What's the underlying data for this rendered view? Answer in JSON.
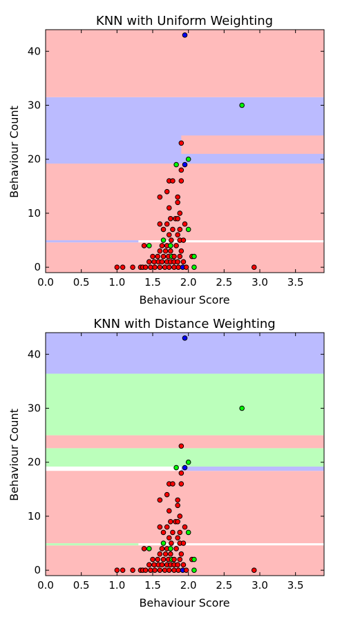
{
  "chart_data": [
    {
      "type": "scatter",
      "title": "KNN with Uniform Weighting",
      "xlabel": "Behaviour Score",
      "ylabel": "Behaviour Count",
      "xlim": [
        0.0,
        3.9
      ],
      "ylim": [
        -1,
        44
      ],
      "xticks": [
        "0.0",
        "0.5",
        "1.0",
        "1.5",
        "2.0",
        "2.5",
        "3.0",
        "3.5"
      ],
      "yticks": [
        "0",
        "10",
        "20",
        "30",
        "40"
      ],
      "grid": false,
      "class_colors": {
        "red": {
          "region": "#ffbbbb",
          "point": "#ff0000"
        },
        "green": {
          "region": "#bbffbb",
          "point": "#00ff00"
        },
        "blue": {
          "region": "#bbbbff",
          "point": "#0000ff"
        }
      },
      "regions": [
        {
          "class": "red",
          "x": [
            0.0,
            3.9
          ],
          "y": [
            -1,
            4.6
          ]
        },
        {
          "class": "blue",
          "x": [
            0.0,
            1.3
          ],
          "y": [
            4.6,
            5.0
          ]
        },
        {
          "class": "red",
          "x": [
            0.0,
            3.9
          ],
          "y": [
            5.0,
            19.2
          ]
        },
        {
          "class": "blue",
          "x": [
            0.0,
            3.9
          ],
          "y": [
            19.2,
            31.5
          ]
        },
        {
          "class": "red",
          "x": [
            1.9,
            3.9
          ],
          "y": [
            21.0,
            24.4
          ]
        },
        {
          "class": "red",
          "x": [
            0.0,
            3.9
          ],
          "y": [
            31.5,
            44
          ]
        }
      ],
      "points": [
        {
          "x": 1.95,
          "y": 43,
          "class": "blue"
        },
        {
          "x": 2.75,
          "y": 30,
          "class": "green"
        },
        {
          "x": 1.9,
          "y": 23,
          "class": "red"
        },
        {
          "x": 2.0,
          "y": 20,
          "class": "green"
        },
        {
          "x": 1.83,
          "y": 19,
          "class": "green"
        },
        {
          "x": 1.95,
          "y": 19,
          "class": "blue"
        },
        {
          "x": 1.9,
          "y": 18,
          "class": "red"
        },
        {
          "x": 1.73,
          "y": 16,
          "class": "red"
        },
        {
          "x": 1.78,
          "y": 16,
          "class": "red"
        },
        {
          "x": 1.9,
          "y": 16,
          "class": "red"
        },
        {
          "x": 1.7,
          "y": 14,
          "class": "red"
        },
        {
          "x": 1.6,
          "y": 13,
          "class": "red"
        },
        {
          "x": 1.85,
          "y": 13,
          "class": "red"
        },
        {
          "x": 1.85,
          "y": 12,
          "class": "red"
        },
        {
          "x": 1.73,
          "y": 11,
          "class": "red"
        },
        {
          "x": 1.88,
          "y": 10,
          "class": "red"
        },
        {
          "x": 1.75,
          "y": 9,
          "class": "red"
        },
        {
          "x": 1.82,
          "y": 9,
          "class": "red"
        },
        {
          "x": 1.85,
          "y": 9,
          "class": "red"
        },
        {
          "x": 1.6,
          "y": 8,
          "class": "red"
        },
        {
          "x": 1.7,
          "y": 8,
          "class": "red"
        },
        {
          "x": 1.95,
          "y": 8,
          "class": "red"
        },
        {
          "x": 1.65,
          "y": 7,
          "class": "red"
        },
        {
          "x": 1.78,
          "y": 7,
          "class": "red"
        },
        {
          "x": 1.88,
          "y": 7,
          "class": "red"
        },
        {
          "x": 2.0,
          "y": 7,
          "class": "green"
        },
        {
          "x": 1.73,
          "y": 6,
          "class": "red"
        },
        {
          "x": 1.85,
          "y": 6,
          "class": "red"
        },
        {
          "x": 1.65,
          "y": 5,
          "class": "green"
        },
        {
          "x": 1.76,
          "y": 5,
          "class": "red"
        },
        {
          "x": 1.88,
          "y": 5,
          "class": "red"
        },
        {
          "x": 1.93,
          "y": 5,
          "class": "red"
        },
        {
          "x": 1.38,
          "y": 4,
          "class": "red"
        },
        {
          "x": 1.45,
          "y": 4,
          "class": "green"
        },
        {
          "x": 1.63,
          "y": 4,
          "class": "red"
        },
        {
          "x": 1.7,
          "y": 4,
          "class": "red"
        },
        {
          "x": 1.75,
          "y": 4,
          "class": "green"
        },
        {
          "x": 1.83,
          "y": 4,
          "class": "red"
        },
        {
          "x": 1.6,
          "y": 3,
          "class": "red"
        },
        {
          "x": 1.68,
          "y": 3,
          "class": "red"
        },
        {
          "x": 1.75,
          "y": 3,
          "class": "red"
        },
        {
          "x": 1.9,
          "y": 3,
          "class": "red"
        },
        {
          "x": 1.5,
          "y": 2,
          "class": "red"
        },
        {
          "x": 1.57,
          "y": 2,
          "class": "red"
        },
        {
          "x": 1.65,
          "y": 2,
          "class": "red"
        },
        {
          "x": 1.72,
          "y": 2,
          "class": "red"
        },
        {
          "x": 1.77,
          "y": 2,
          "class": "green"
        },
        {
          "x": 1.8,
          "y": 2,
          "class": "red"
        },
        {
          "x": 1.88,
          "y": 2,
          "class": "red"
        },
        {
          "x": 2.05,
          "y": 2,
          "class": "red"
        },
        {
          "x": 2.08,
          "y": 2,
          "class": "green"
        },
        {
          "x": 1.45,
          "y": 1,
          "class": "red"
        },
        {
          "x": 1.52,
          "y": 1,
          "class": "red"
        },
        {
          "x": 1.58,
          "y": 1,
          "class": "red"
        },
        {
          "x": 1.63,
          "y": 1,
          "class": "red"
        },
        {
          "x": 1.7,
          "y": 1,
          "class": "red"
        },
        {
          "x": 1.75,
          "y": 1,
          "class": "red"
        },
        {
          "x": 1.8,
          "y": 1,
          "class": "red"
        },
        {
          "x": 1.85,
          "y": 1,
          "class": "red"
        },
        {
          "x": 1.93,
          "y": 1,
          "class": "red"
        },
        {
          "x": 1.0,
          "y": 0,
          "class": "red"
        },
        {
          "x": 1.08,
          "y": 0,
          "class": "red"
        },
        {
          "x": 1.22,
          "y": 0,
          "class": "red"
        },
        {
          "x": 1.33,
          "y": 0,
          "class": "red"
        },
        {
          "x": 1.36,
          "y": 0,
          "class": "red"
        },
        {
          "x": 1.4,
          "y": 0,
          "class": "red"
        },
        {
          "x": 1.47,
          "y": 0,
          "class": "red"
        },
        {
          "x": 1.53,
          "y": 0,
          "class": "red"
        },
        {
          "x": 1.6,
          "y": 0,
          "class": "red"
        },
        {
          "x": 1.67,
          "y": 0,
          "class": "red"
        },
        {
          "x": 1.73,
          "y": 0,
          "class": "red"
        },
        {
          "x": 1.8,
          "y": 0,
          "class": "red"
        },
        {
          "x": 1.86,
          "y": 0,
          "class": "red"
        },
        {
          "x": 1.92,
          "y": 0,
          "class": "blue"
        },
        {
          "x": 1.97,
          "y": 0,
          "class": "red"
        },
        {
          "x": 2.08,
          "y": 0,
          "class": "green"
        },
        {
          "x": 2.92,
          "y": 0,
          "class": "red"
        }
      ]
    },
    {
      "type": "scatter",
      "title": "KNN with Distance Weighting",
      "xlabel": "Behaviour Score",
      "ylabel": "Behaviour Count",
      "xlim": [
        0.0,
        3.9
      ],
      "ylim": [
        -1,
        44
      ],
      "xticks": [
        "0.0",
        "0.5",
        "1.0",
        "1.5",
        "2.0",
        "2.5",
        "3.0",
        "3.5"
      ],
      "yticks": [
        "0",
        "10",
        "20",
        "30",
        "40"
      ],
      "grid": false,
      "class_colors": {
        "red": {
          "region": "#ffbbbb",
          "point": "#ff0000"
        },
        "green": {
          "region": "#bbffbb",
          "point": "#00ff00"
        },
        "blue": {
          "region": "#bbbbff",
          "point": "#0000ff"
        }
      },
      "regions": [
        {
          "class": "red",
          "x": [
            0.0,
            3.9
          ],
          "y": [
            -1,
            4.6
          ]
        },
        {
          "class": "green",
          "x": [
            0.0,
            1.3
          ],
          "y": [
            4.6,
            5.0
          ]
        },
        {
          "class": "red",
          "x": [
            0.0,
            3.9
          ],
          "y": [
            5.0,
            18.4
          ]
        },
        {
          "class": "blue",
          "x": [
            1.9,
            3.9
          ],
          "y": [
            18.4,
            19.2
          ]
        },
        {
          "class": "green",
          "x": [
            0.0,
            3.9
          ],
          "y": [
            19.2,
            22.6
          ]
        },
        {
          "class": "red",
          "x": [
            0.0,
            3.9
          ],
          "y": [
            22.6,
            25.0
          ]
        },
        {
          "class": "green",
          "x": [
            0.0,
            3.9
          ],
          "y": [
            25.0,
            36.4
          ]
        },
        {
          "class": "blue",
          "x": [
            0.0,
            3.9
          ],
          "y": [
            36.4,
            44
          ]
        }
      ],
      "points": [
        {
          "x": 1.95,
          "y": 43,
          "class": "blue"
        },
        {
          "x": 2.75,
          "y": 30,
          "class": "green"
        },
        {
          "x": 1.9,
          "y": 23,
          "class": "red"
        },
        {
          "x": 2.0,
          "y": 20,
          "class": "green"
        },
        {
          "x": 1.83,
          "y": 19,
          "class": "green"
        },
        {
          "x": 1.95,
          "y": 19,
          "class": "blue"
        },
        {
          "x": 1.9,
          "y": 18,
          "class": "red"
        },
        {
          "x": 1.73,
          "y": 16,
          "class": "red"
        },
        {
          "x": 1.78,
          "y": 16,
          "class": "red"
        },
        {
          "x": 1.9,
          "y": 16,
          "class": "red"
        },
        {
          "x": 1.7,
          "y": 14,
          "class": "red"
        },
        {
          "x": 1.6,
          "y": 13,
          "class": "red"
        },
        {
          "x": 1.85,
          "y": 13,
          "class": "red"
        },
        {
          "x": 1.85,
          "y": 12,
          "class": "red"
        },
        {
          "x": 1.73,
          "y": 11,
          "class": "red"
        },
        {
          "x": 1.88,
          "y": 10,
          "class": "red"
        },
        {
          "x": 1.75,
          "y": 9,
          "class": "red"
        },
        {
          "x": 1.82,
          "y": 9,
          "class": "red"
        },
        {
          "x": 1.85,
          "y": 9,
          "class": "red"
        },
        {
          "x": 1.6,
          "y": 8,
          "class": "red"
        },
        {
          "x": 1.7,
          "y": 8,
          "class": "red"
        },
        {
          "x": 1.95,
          "y": 8,
          "class": "red"
        },
        {
          "x": 1.65,
          "y": 7,
          "class": "red"
        },
        {
          "x": 1.78,
          "y": 7,
          "class": "red"
        },
        {
          "x": 1.88,
          "y": 7,
          "class": "red"
        },
        {
          "x": 2.0,
          "y": 7,
          "class": "green"
        },
        {
          "x": 1.73,
          "y": 6,
          "class": "red"
        },
        {
          "x": 1.85,
          "y": 6,
          "class": "red"
        },
        {
          "x": 1.65,
          "y": 5,
          "class": "green"
        },
        {
          "x": 1.76,
          "y": 5,
          "class": "red"
        },
        {
          "x": 1.88,
          "y": 5,
          "class": "red"
        },
        {
          "x": 1.93,
          "y": 5,
          "class": "red"
        },
        {
          "x": 1.38,
          "y": 4,
          "class": "red"
        },
        {
          "x": 1.45,
          "y": 4,
          "class": "green"
        },
        {
          "x": 1.63,
          "y": 4,
          "class": "red"
        },
        {
          "x": 1.7,
          "y": 4,
          "class": "red"
        },
        {
          "x": 1.75,
          "y": 4,
          "class": "green"
        },
        {
          "x": 1.83,
          "y": 4,
          "class": "red"
        },
        {
          "x": 1.6,
          "y": 3,
          "class": "red"
        },
        {
          "x": 1.68,
          "y": 3,
          "class": "red"
        },
        {
          "x": 1.75,
          "y": 3,
          "class": "red"
        },
        {
          "x": 1.9,
          "y": 3,
          "class": "red"
        },
        {
          "x": 1.5,
          "y": 2,
          "class": "red"
        },
        {
          "x": 1.57,
          "y": 2,
          "class": "red"
        },
        {
          "x": 1.65,
          "y": 2,
          "class": "red"
        },
        {
          "x": 1.72,
          "y": 2,
          "class": "red"
        },
        {
          "x": 1.77,
          "y": 2,
          "class": "green"
        },
        {
          "x": 1.8,
          "y": 2,
          "class": "red"
        },
        {
          "x": 1.88,
          "y": 2,
          "class": "red"
        },
        {
          "x": 2.05,
          "y": 2,
          "class": "red"
        },
        {
          "x": 2.08,
          "y": 2,
          "class": "green"
        },
        {
          "x": 1.45,
          "y": 1,
          "class": "red"
        },
        {
          "x": 1.52,
          "y": 1,
          "class": "red"
        },
        {
          "x": 1.58,
          "y": 1,
          "class": "red"
        },
        {
          "x": 1.63,
          "y": 1,
          "class": "red"
        },
        {
          "x": 1.7,
          "y": 1,
          "class": "red"
        },
        {
          "x": 1.75,
          "y": 1,
          "class": "red"
        },
        {
          "x": 1.8,
          "y": 1,
          "class": "red"
        },
        {
          "x": 1.85,
          "y": 1,
          "class": "red"
        },
        {
          "x": 1.93,
          "y": 1,
          "class": "red"
        },
        {
          "x": 1.0,
          "y": 0,
          "class": "red"
        },
        {
          "x": 1.08,
          "y": 0,
          "class": "red"
        },
        {
          "x": 1.22,
          "y": 0,
          "class": "red"
        },
        {
          "x": 1.33,
          "y": 0,
          "class": "red"
        },
        {
          "x": 1.36,
          "y": 0,
          "class": "red"
        },
        {
          "x": 1.4,
          "y": 0,
          "class": "red"
        },
        {
          "x": 1.47,
          "y": 0,
          "class": "red"
        },
        {
          "x": 1.53,
          "y": 0,
          "class": "red"
        },
        {
          "x": 1.6,
          "y": 0,
          "class": "red"
        },
        {
          "x": 1.67,
          "y": 0,
          "class": "red"
        },
        {
          "x": 1.73,
          "y": 0,
          "class": "red"
        },
        {
          "x": 1.8,
          "y": 0,
          "class": "red"
        },
        {
          "x": 1.86,
          "y": 0,
          "class": "red"
        },
        {
          "x": 1.92,
          "y": 0,
          "class": "blue"
        },
        {
          "x": 1.97,
          "y": 0,
          "class": "red"
        },
        {
          "x": 2.08,
          "y": 0,
          "class": "green"
        },
        {
          "x": 2.92,
          "y": 0,
          "class": "red"
        }
      ]
    }
  ]
}
